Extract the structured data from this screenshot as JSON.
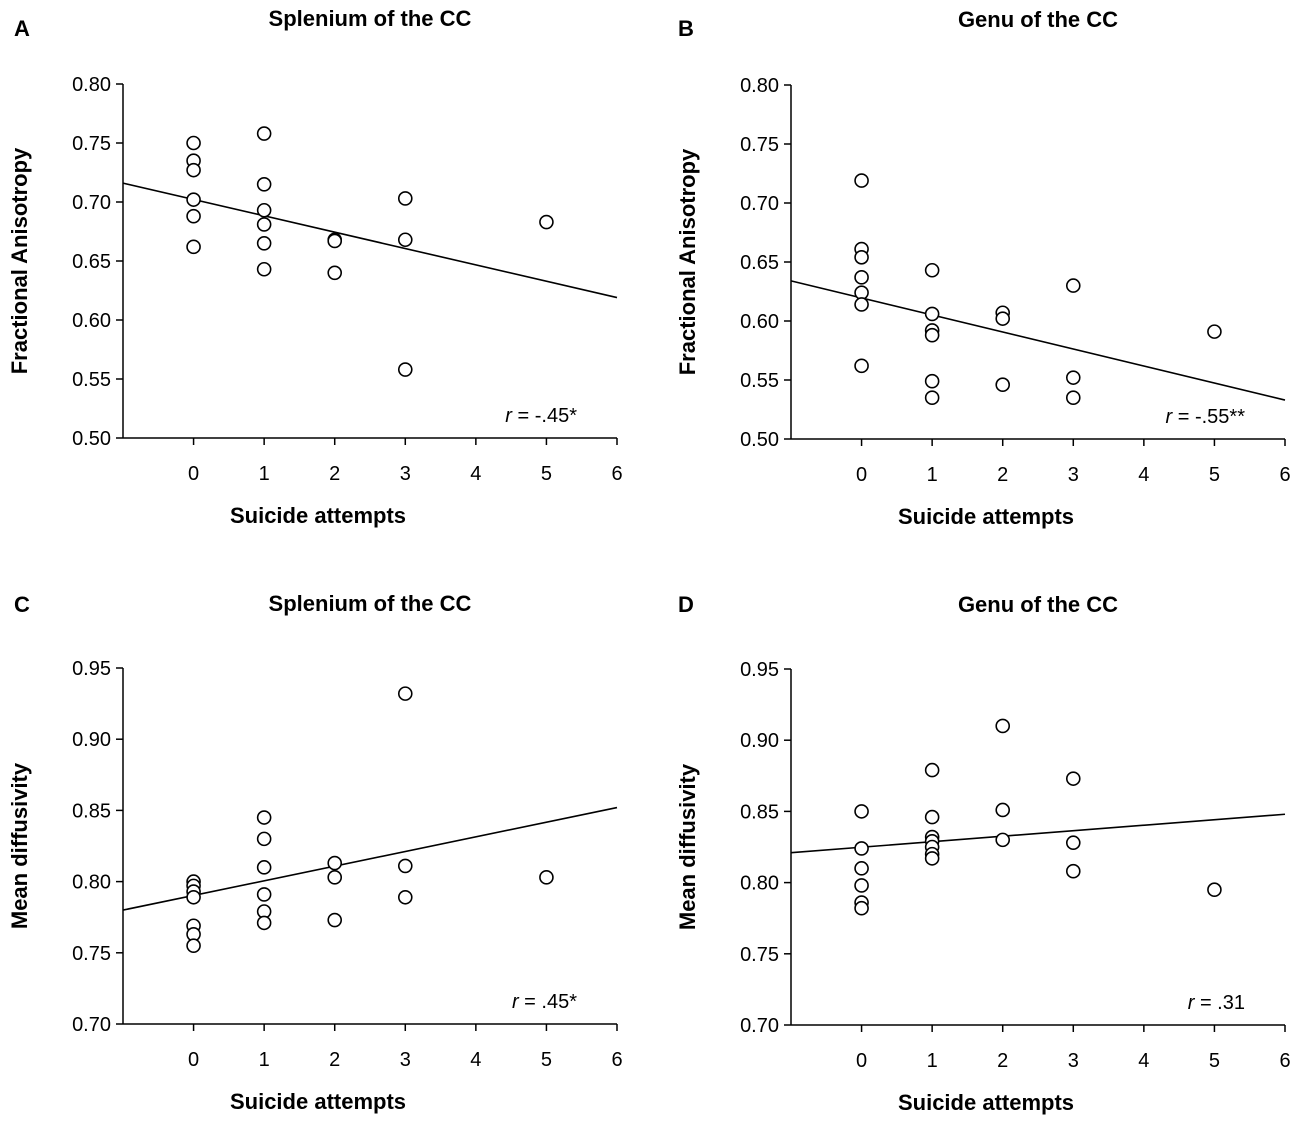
{
  "chart_data": [
    {
      "panel": "A",
      "type": "scatter",
      "title": "Splenium of the CC",
      "xlabel": "Suicide attempts",
      "ylabel": "Fractional Anisotropy",
      "xlim": [
        -1,
        6
      ],
      "ylim": [
        0.5,
        0.8
      ],
      "xticks": [
        0,
        1,
        2,
        3,
        4,
        5,
        6
      ],
      "yticks": [
        "0.50",
        "0.55",
        "0.60",
        "0.65",
        "0.70",
        "0.75",
        "0.80"
      ],
      "points": [
        [
          0,
          0.75
        ],
        [
          0,
          0.735
        ],
        [
          0,
          0.727
        ],
        [
          0,
          0.702
        ],
        [
          0,
          0.688
        ],
        [
          0,
          0.662
        ],
        [
          1,
          0.758
        ],
        [
          1,
          0.715
        ],
        [
          1,
          0.693
        ],
        [
          1,
          0.681
        ],
        [
          1,
          0.665
        ],
        [
          1,
          0.643
        ],
        [
          2,
          0.668
        ],
        [
          2,
          0.667
        ],
        [
          2,
          0.64
        ],
        [
          3,
          0.703
        ],
        [
          3,
          0.668
        ],
        [
          3,
          0.558
        ],
        [
          5,
          0.683
        ]
      ],
      "trend": [
        [
          -1,
          0.716
        ],
        [
          6,
          0.619
        ]
      ],
      "annotation": {
        "r_symbol": "r",
        "text": " = -.45*"
      }
    },
    {
      "panel": "B",
      "type": "scatter",
      "title": "Genu of the CC",
      "xlabel": "Suicide attempts",
      "ylabel": "Fractional Anisotropy",
      "xlim": [
        -1,
        6
      ],
      "ylim": [
        0.5,
        0.8
      ],
      "xticks": [
        0,
        1,
        2,
        3,
        4,
        5,
        6
      ],
      "yticks": [
        "0.50",
        "0.55",
        "0.60",
        "0.65",
        "0.70",
        "0.75",
        "0.80"
      ],
      "points": [
        [
          0,
          0.719
        ],
        [
          0,
          0.661
        ],
        [
          0,
          0.654
        ],
        [
          0,
          0.637
        ],
        [
          0,
          0.624
        ],
        [
          0,
          0.614
        ],
        [
          0,
          0.562
        ],
        [
          1,
          0.643
        ],
        [
          1,
          0.606
        ],
        [
          1,
          0.592
        ],
        [
          1,
          0.588
        ],
        [
          1,
          0.549
        ],
        [
          1,
          0.535
        ],
        [
          2,
          0.607
        ],
        [
          2,
          0.602
        ],
        [
          2,
          0.546
        ],
        [
          3,
          0.63
        ],
        [
          3,
          0.552
        ],
        [
          3,
          0.535
        ],
        [
          5,
          0.591
        ]
      ],
      "trend": [
        [
          -1,
          0.634
        ],
        [
          6,
          0.533
        ]
      ],
      "annotation": {
        "r_symbol": "r",
        "text": " = -.55**"
      }
    },
    {
      "panel": "C",
      "type": "scatter",
      "title": "Splenium of the CC",
      "xlabel": "Suicide attempts",
      "ylabel": "Mean diffusivity",
      "xlim": [
        -1,
        6
      ],
      "ylim": [
        0.7,
        0.95
      ],
      "xticks": [
        0,
        1,
        2,
        3,
        4,
        5,
        6
      ],
      "yticks": [
        "0.70",
        "0.75",
        "0.80",
        "0.85",
        "0.90",
        "0.95"
      ],
      "points": [
        [
          0,
          0.8
        ],
        [
          0,
          0.797
        ],
        [
          0,
          0.793
        ],
        [
          0,
          0.789
        ],
        [
          0,
          0.769
        ],
        [
          0,
          0.763
        ],
        [
          0,
          0.755
        ],
        [
          1,
          0.845
        ],
        [
          1,
          0.83
        ],
        [
          1,
          0.81
        ],
        [
          1,
          0.791
        ],
        [
          1,
          0.779
        ],
        [
          1,
          0.771
        ],
        [
          2,
          0.813
        ],
        [
          2,
          0.803
        ],
        [
          2,
          0.773
        ],
        [
          3,
          0.932
        ],
        [
          3,
          0.811
        ],
        [
          3,
          0.789
        ],
        [
          5,
          0.803
        ]
      ],
      "trend": [
        [
          -1,
          0.78
        ],
        [
          6,
          0.852
        ]
      ],
      "annotation": {
        "r_symbol": "r",
        "text": " = .45*"
      }
    },
    {
      "panel": "D",
      "type": "scatter",
      "title": "Genu of the CC",
      "xlabel": "Suicide attempts",
      "ylabel": "Mean diffusivity",
      "xlim": [
        -1,
        6
      ],
      "ylim": [
        0.7,
        0.95
      ],
      "xticks": [
        0,
        1,
        2,
        3,
        4,
        5,
        6
      ],
      "yticks": [
        "0.70",
        "0.75",
        "0.80",
        "0.85",
        "0.90",
        "0.95"
      ],
      "points": [
        [
          0,
          0.85
        ],
        [
          0,
          0.824
        ],
        [
          0,
          0.81
        ],
        [
          0,
          0.798
        ],
        [
          0,
          0.786
        ],
        [
          0,
          0.782
        ],
        [
          1,
          0.879
        ],
        [
          1,
          0.846
        ],
        [
          1,
          0.832
        ],
        [
          1,
          0.829
        ],
        [
          1,
          0.825
        ],
        [
          1,
          0.82
        ],
        [
          1,
          0.817
        ],
        [
          2,
          0.91
        ],
        [
          2,
          0.851
        ],
        [
          2,
          0.83
        ],
        [
          3,
          0.873
        ],
        [
          3,
          0.828
        ],
        [
          3,
          0.808
        ],
        [
          5,
          0.795
        ]
      ],
      "trend": [
        [
          -1,
          0.821
        ],
        [
          6,
          0.848
        ]
      ],
      "annotation": {
        "r_symbol": "r",
        "text": " = .31"
      }
    }
  ]
}
